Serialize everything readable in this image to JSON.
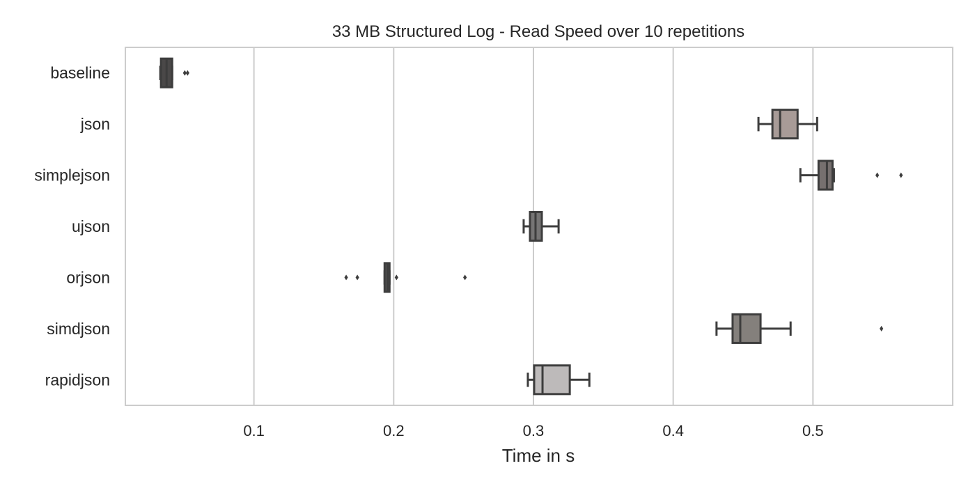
{
  "chart_data": {
    "type": "box",
    "orientation": "horizontal",
    "title": "33 MB Structured Log - Read Speed over 10 repetitions",
    "xlabel": "Time in s",
    "ylabel": "",
    "xlim": [
      0.008,
      0.6
    ],
    "xticks": [
      0.1,
      0.2,
      0.3,
      0.4,
      0.5
    ],
    "xtick_labels": [
      "0.1",
      "0.2",
      "0.3",
      "0.4",
      "0.5"
    ],
    "grid": "vertical",
    "legend": "none",
    "categories": [
      "baseline",
      "json",
      "simplejson",
      "ujson",
      "orjson",
      "simdjson",
      "rapidjson"
    ],
    "boxes": [
      {
        "label": "baseline",
        "whislo": 0.033,
        "q1": 0.0335,
        "med": 0.0375,
        "q3": 0.0415,
        "whishi": 0.0415,
        "fliers": [
          0.0505,
          0.0525
        ],
        "color": "#4a4848"
      },
      {
        "label": "json",
        "whislo": 0.461,
        "q1": 0.471,
        "med": 0.4765,
        "q3": 0.489,
        "whishi": 0.503,
        "fliers": [],
        "color": "#a89b97"
      },
      {
        "label": "simplejson",
        "whislo": 0.491,
        "q1": 0.504,
        "med": 0.51,
        "q3": 0.514,
        "whishi": 0.515,
        "fliers": [
          0.546,
          0.563
        ],
        "color": "#76706f"
      },
      {
        "label": "ujson",
        "whislo": 0.293,
        "q1": 0.2975,
        "med": 0.3015,
        "q3": 0.306,
        "whishi": 0.318,
        "fliers": [],
        "color": "#767575"
      },
      {
        "label": "orjson",
        "whislo": 0.1935,
        "q1": 0.1935,
        "med": 0.1955,
        "q3": 0.197,
        "whishi": 0.197,
        "fliers": [
          0.166,
          0.174,
          0.202,
          0.251
        ],
        "color": "#5a5a5a"
      },
      {
        "label": "simdjson",
        "whislo": 0.431,
        "q1": 0.4425,
        "med": 0.448,
        "q3": 0.4625,
        "whishi": 0.484,
        "fliers": [
          0.549
        ],
        "color": "#84807c"
      },
      {
        "label": "rapidjson",
        "whislo": 0.296,
        "q1": 0.3005,
        "med": 0.3065,
        "q3": 0.326,
        "whishi": 0.34,
        "fliers": [],
        "color": "#bdbaba"
      }
    ]
  }
}
